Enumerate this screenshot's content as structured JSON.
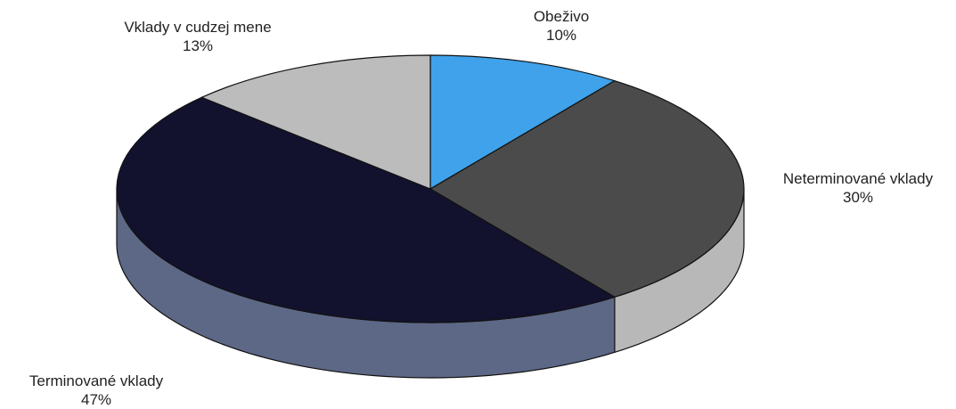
{
  "chart_data": {
    "type": "pie",
    "variant": "3d",
    "title": "",
    "legend": "none",
    "slices": [
      {
        "label": "Obeživo",
        "value": 10,
        "percent_label": "10%",
        "color": "#3fa2ea"
      },
      {
        "label": "Neterminované vklady",
        "value": 30,
        "percent_label": "30%",
        "color": "#4b4b4b"
      },
      {
        "label": "Terminované vklady",
        "value": 47,
        "percent_label": "47%",
        "color": "#12122e"
      },
      {
        "label": "Vklady v cudzej mene",
        "value": 13,
        "percent_label": "13%",
        "color": "#bcbcbc"
      }
    ],
    "side_colors": {
      "Obeživo": "#2a7fc0",
      "Neterminované vklady": "#b8b8b8",
      "Terminované vklady": "#5d6786",
      "Vklady v cudzej mene": "#9a9a9a"
    },
    "outline_color": "#111111"
  }
}
